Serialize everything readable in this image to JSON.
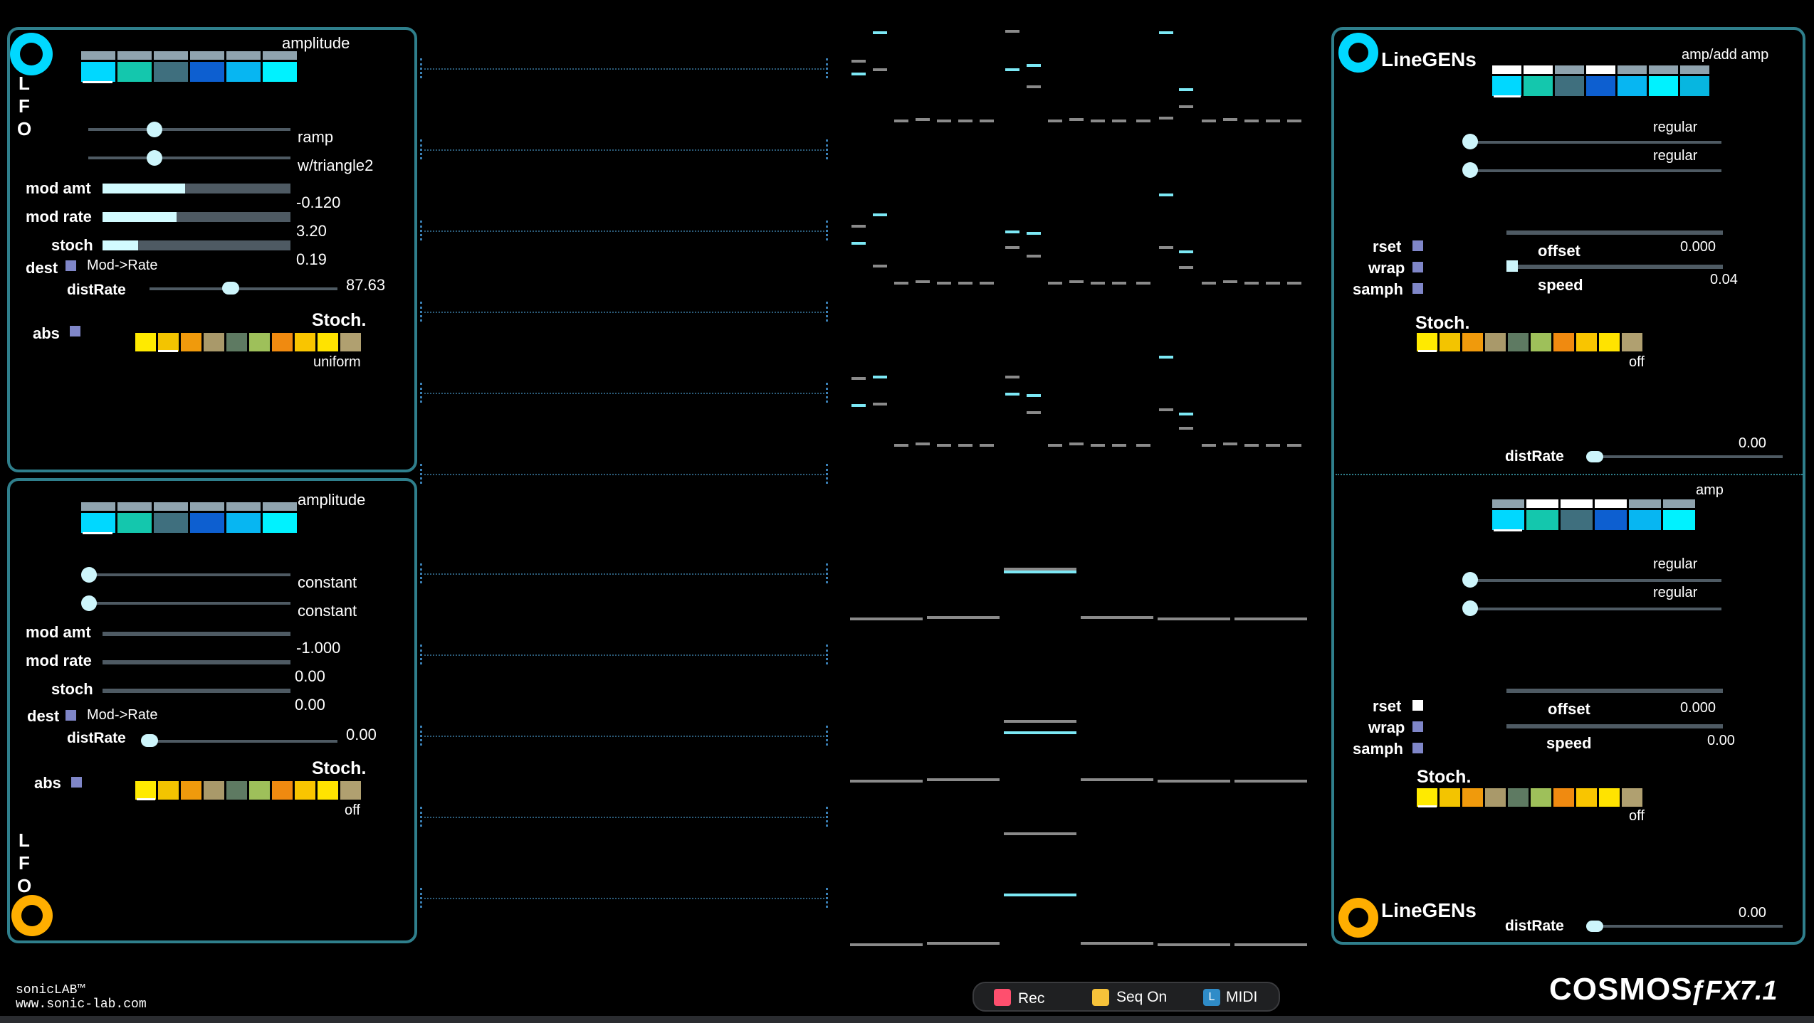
{
  "lfo_top": {
    "side_label": [
      "L",
      "F",
      "O"
    ],
    "amplitude_label": "amplitude",
    "waveform1": "ramp",
    "waveform2": "w/triangle2",
    "mod_amt_label": "mod amt",
    "mod_rate_label": "mod rate",
    "stoch_label": "stoch",
    "dest_label": "dest",
    "dest_value": "Mod->Rate",
    "mod_amt_value": "-0.120",
    "mod_rate_value": "3.20",
    "stoch_value": "0.19",
    "distrate_label": "distRate",
    "distrate_value": "87.63",
    "abs_label": "abs",
    "stoch_title": "Stoch.",
    "stoch_mode": "uniform",
    "mod_amt_fraction": 0.44,
    "mod_rate_fraction": 0.4,
    "stoch_fraction": 0.19
  },
  "lfo_bottom": {
    "side_label": [
      "L",
      "F",
      "O"
    ],
    "amplitude_label": "amplitude",
    "waveform1": "constant",
    "waveform2": "constant",
    "mod_amt_label": "mod amt",
    "mod_rate_label": "mod rate",
    "stoch_label": "stoch",
    "dest_label": "dest",
    "dest_value": "Mod->Rate",
    "mod_amt_value": "-1.000",
    "mod_rate_value": "0.00",
    "stoch_value": "0.00",
    "distrate_label": "distRate",
    "distrate_value": "0.00",
    "abs_label": "abs",
    "stoch_title": "Stoch.",
    "stoch_mode": "off"
  },
  "linegen_top": {
    "title": "LineGENs",
    "amp_label": "amp/add amp",
    "mode1": "regular",
    "mode2": "regular",
    "rset_label": "rset",
    "wrap_label": "wrap",
    "samph_label": "samph",
    "offset_label": "offset",
    "offset_value": "0.000",
    "speed_label": "speed",
    "speed_value": "0.04",
    "stoch_title": "Stoch.",
    "stoch_mode": "off",
    "distrate_label": "distRate",
    "distrate_value": "0.00"
  },
  "linegen_bottom": {
    "title": "LineGENs",
    "amp_label": "amp",
    "mode1": "regular",
    "mode2": "regular",
    "rset_label": "rset",
    "wrap_label": "wrap",
    "samph_label": "samph",
    "offset_label": "offset",
    "offset_value": "0.000",
    "speed_label": "speed",
    "speed_value": "0.00",
    "stoch_title": "Stoch.",
    "stoch_mode": "off",
    "distrate_label": "distRate",
    "distrate_value": "0.00"
  },
  "footer": {
    "brand_line1": "sonicLAB™",
    "brand_line2": "www.sonic-lab.com",
    "rec_label": "Rec",
    "seq_label": "Seq On",
    "midi_label": "MIDI",
    "midi_icon_letter": "L",
    "product_name": "COSMOS",
    "product_suffix": "ƒFX7.1"
  },
  "colors": {
    "panel_border": "#2f7f8c",
    "accent_cyan": "#00e5ff",
    "accent_orange": "#ffae00",
    "rec": "#ff4f6e",
    "seq": "#f6c23a",
    "midi": "#2f8cc8"
  },
  "icons": {
    "lfo_top_knob": "cyan-ring-knob",
    "lfo_bottom_knob": "orange-ring-knob",
    "linegen_top_knob": "cyan-ring-knob",
    "linegen_bottom_knob": "orange-ring-knob"
  }
}
